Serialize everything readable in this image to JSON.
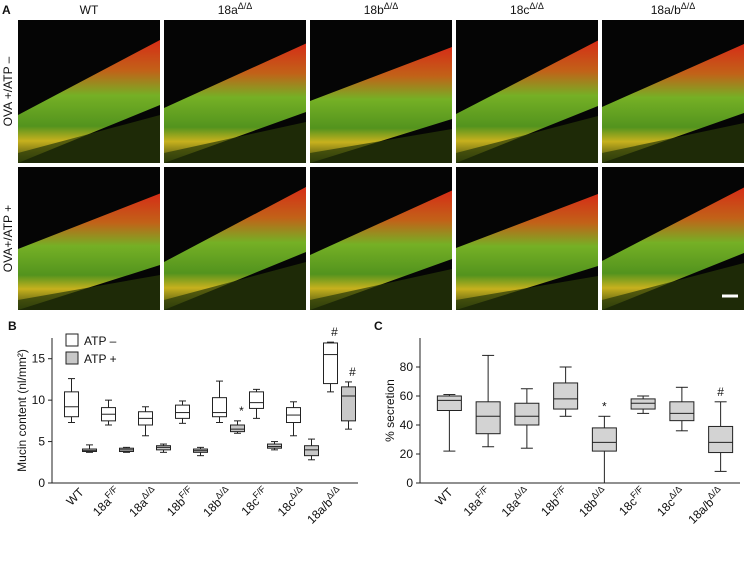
{
  "panel_a": {
    "label": "A",
    "columns": [
      {
        "text": "WT"
      },
      {
        "text": "18a",
        "sup": "Δ/Δ"
      },
      {
        "text": "18b",
        "sup": "Δ/Δ"
      },
      {
        "text": "18c",
        "sup": "Δ/Δ"
      },
      {
        "text": "18a/b",
        "sup": "Δ/Δ"
      }
    ],
    "rows": [
      "OVA +/ATP –",
      "OVA+/ATP +"
    ]
  },
  "chart_data": [
    {
      "type": "box",
      "panel_label": "B",
      "y_label": "Mucin content (nl/mm²)",
      "categories": [
        {
          "text": "WT"
        },
        {
          "text": "18a",
          "sup": "F/F"
        },
        {
          "text": "18a",
          "sup": "Δ/Δ"
        },
        {
          "text": "18b",
          "sup": "F/F"
        },
        {
          "text": "18b",
          "sup": "Δ/Δ"
        },
        {
          "text": "18c",
          "sup": "F/F"
        },
        {
          "text": "18c",
          "sup": "Δ/Δ"
        },
        {
          "text": "18a/b",
          "sup": "Δ/Δ"
        }
      ],
      "ylim": [
        0,
        17.5
      ],
      "yticks": [
        0,
        5,
        10,
        15
      ],
      "legend": "top-left",
      "series": [
        {
          "name": "ATP –",
          "color": "#ffffff",
          "boxes": [
            {
              "min": 7.3,
              "q1": 8,
              "median": 9.2,
              "q3": 11,
              "max": 12.6
            },
            {
              "min": 7,
              "q1": 7.5,
              "median": 8.3,
              "q3": 9.1,
              "max": 10
            },
            {
              "min": 5.7,
              "q1": 7,
              "median": 7.8,
              "q3": 8.6,
              "max": 9.2
            },
            {
              "min": 7.2,
              "q1": 7.8,
              "median": 8.5,
              "q3": 9.4,
              "max": 9.9
            },
            {
              "min": 7.3,
              "q1": 8,
              "median": 8.5,
              "q3": 10.3,
              "max": 12.3
            },
            {
              "min": 7.8,
              "q1": 9,
              "median": 9.7,
              "q3": 11,
              "max": 11.3
            },
            {
              "min": 5.7,
              "q1": 7.3,
              "median": 8.2,
              "q3": 9.1,
              "max": 9.8
            },
            {
              "min": 11,
              "q1": 12,
              "median": 15.5,
              "q3": 16.9,
              "max": 17
            }
          ],
          "annotations": [
            null,
            null,
            null,
            null,
            null,
            null,
            null,
            "#"
          ]
        },
        {
          "name": "ATP +",
          "color": "#c8c8c8",
          "boxes": [
            {
              "min": 3.7,
              "q1": 3.8,
              "median": 3.9,
              "q3": 4.1,
              "max": 4.6
            },
            {
              "min": 3.7,
              "q1": 3.8,
              "median": 4,
              "q3": 4.2,
              "max": 4.3
            },
            {
              "min": 3.7,
              "q1": 4,
              "median": 4.3,
              "q3": 4.5,
              "max": 4.7
            },
            {
              "min": 3.3,
              "q1": 3.7,
              "median": 3.9,
              "q3": 4.1,
              "max": 4.3
            },
            {
              "min": 6,
              "q1": 6.2,
              "median": 6.5,
              "q3": 7,
              "max": 7.5
            },
            {
              "min": 4,
              "q1": 4.2,
              "median": 4.4,
              "q3": 4.7,
              "max": 5
            },
            {
              "min": 2.8,
              "q1": 3.3,
              "median": 4,
              "q3": 4.5,
              "max": 5.3
            },
            {
              "min": 6.5,
              "q1": 7.5,
              "median": 10.5,
              "q3": 11.6,
              "max": 12.2
            }
          ],
          "annotations": [
            null,
            null,
            null,
            null,
            "*",
            null,
            null,
            "#"
          ]
        }
      ]
    },
    {
      "type": "box",
      "panel_label": "C",
      "y_label": "% secretion",
      "categories": [
        {
          "text": "WT"
        },
        {
          "text": "18a",
          "sup": "F/F"
        },
        {
          "text": "18a",
          "sup": "Δ/Δ"
        },
        {
          "text": "18b",
          "sup": "F/F"
        },
        {
          "text": "18b",
          "sup": "Δ/Δ"
        },
        {
          "text": "18c",
          "sup": "F/F"
        },
        {
          "text": "18c",
          "sup": "Δ/Δ"
        },
        {
          "text": "18a/b",
          "sup": "Δ/Δ"
        }
      ],
      "ylim": [
        0,
        100
      ],
      "yticks": [
        0,
        20,
        40,
        60,
        80
      ],
      "series": [
        {
          "color": "#d3d3d3",
          "boxes": [
            {
              "min": 22,
              "q1": 50,
              "median": 57,
              "q3": 60,
              "max": 61
            },
            {
              "min": 25,
              "q1": 34,
              "median": 46,
              "q3": 56,
              "max": 88
            },
            {
              "min": 24,
              "q1": 40,
              "median": 46,
              "q3": 55,
              "max": 65
            },
            {
              "min": 46,
              "q1": 51,
              "median": 58,
              "q3": 69,
              "max": 80
            },
            {
              "min": 0,
              "q1": 22,
              "median": 28,
              "q3": 38,
              "max": 46
            },
            {
              "min": 48,
              "q1": 51,
              "median": 55,
              "q3": 58,
              "max": 60
            },
            {
              "min": 36,
              "q1": 43,
              "median": 48,
              "q3": 56,
              "max": 66
            },
            {
              "min": 8,
              "q1": 21,
              "median": 28,
              "q3": 39,
              "max": 56
            }
          ],
          "annotations": [
            null,
            null,
            null,
            null,
            "*",
            null,
            null,
            "#"
          ]
        }
      ]
    }
  ]
}
